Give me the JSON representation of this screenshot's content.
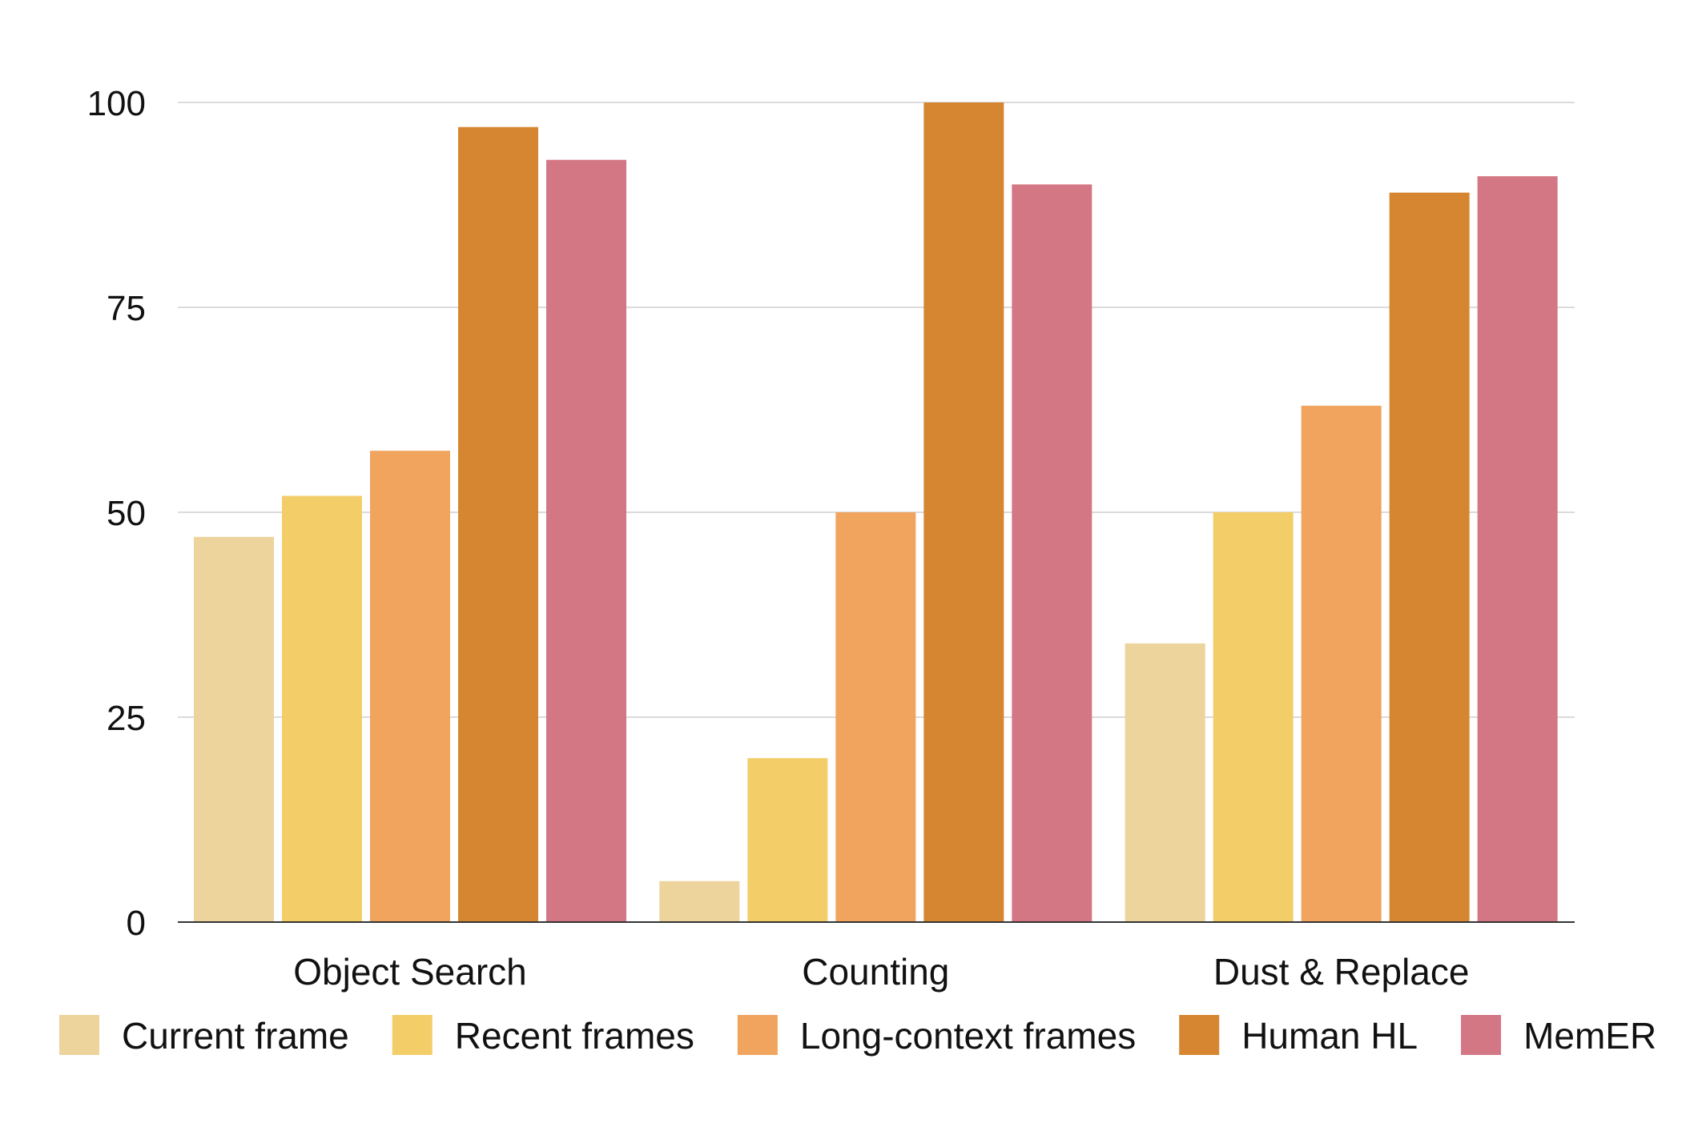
{
  "chart_data": {
    "type": "bar",
    "categories": [
      "Object Search",
      "Counting",
      "Dust & Replace"
    ],
    "series": [
      {
        "name": "Current frame",
        "values": [
          47,
          5,
          34
        ],
        "color": "#ECD49C"
      },
      {
        "name": "Recent frames",
        "values": [
          52,
          20,
          50
        ],
        "color": "#F3CD68"
      },
      {
        "name": "Long-context frames",
        "values": [
          57.5,
          50,
          63
        ],
        "color": "#F0A45E"
      },
      {
        "name": "Human HL",
        "values": [
          97,
          100,
          89
        ],
        "color": "#D68630"
      },
      {
        "name": "MemER",
        "values": [
          93,
          90,
          91
        ],
        "color": "#D47784"
      }
    ],
    "title": "",
    "xlabel": "",
    "ylabel": "",
    "ylim": [
      0,
      100
    ],
    "yticks": [
      0,
      25,
      50,
      75,
      100
    ],
    "grid": true,
    "legend": "bottom"
  }
}
